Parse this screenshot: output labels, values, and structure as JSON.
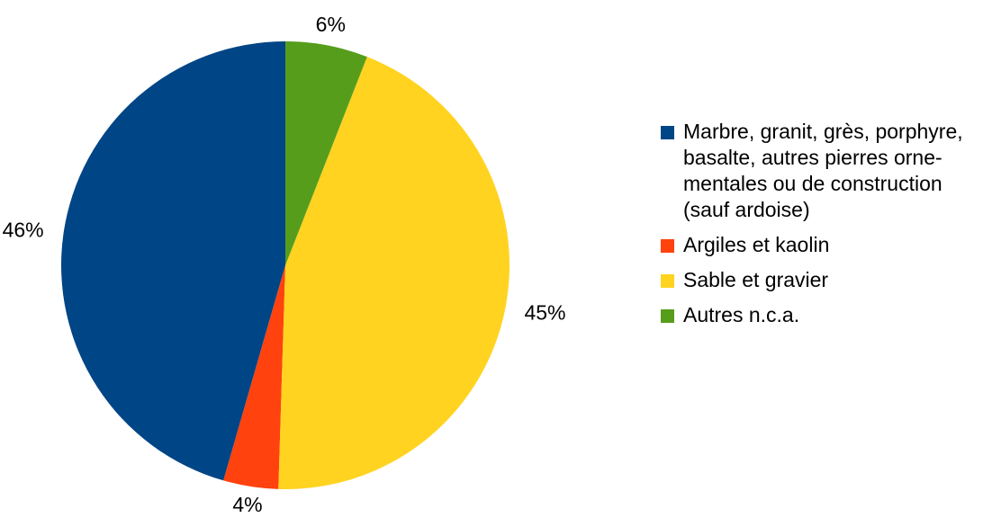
{
  "chart_data": {
    "type": "pie",
    "title": "",
    "legend_position": "right",
    "slices": [
      {
        "label": "Marbre, granit, grès, porphyre,\nbasalte, autres pierres orne-\nmentales ou de construction\n(sauf ardoise)",
        "value": 46,
        "display": "46%",
        "color": "#004586"
      },
      {
        "label": "Argiles et kaolin",
        "value": 4,
        "display": "4%",
        "color": "#ff420e"
      },
      {
        "label": "Sable et gravier",
        "value": 45,
        "display": "45%",
        "color": "#ffd320"
      },
      {
        "label": "Autres n.c.a.",
        "value": 6,
        "display": "6%",
        "color": "#579d1c"
      }
    ]
  }
}
